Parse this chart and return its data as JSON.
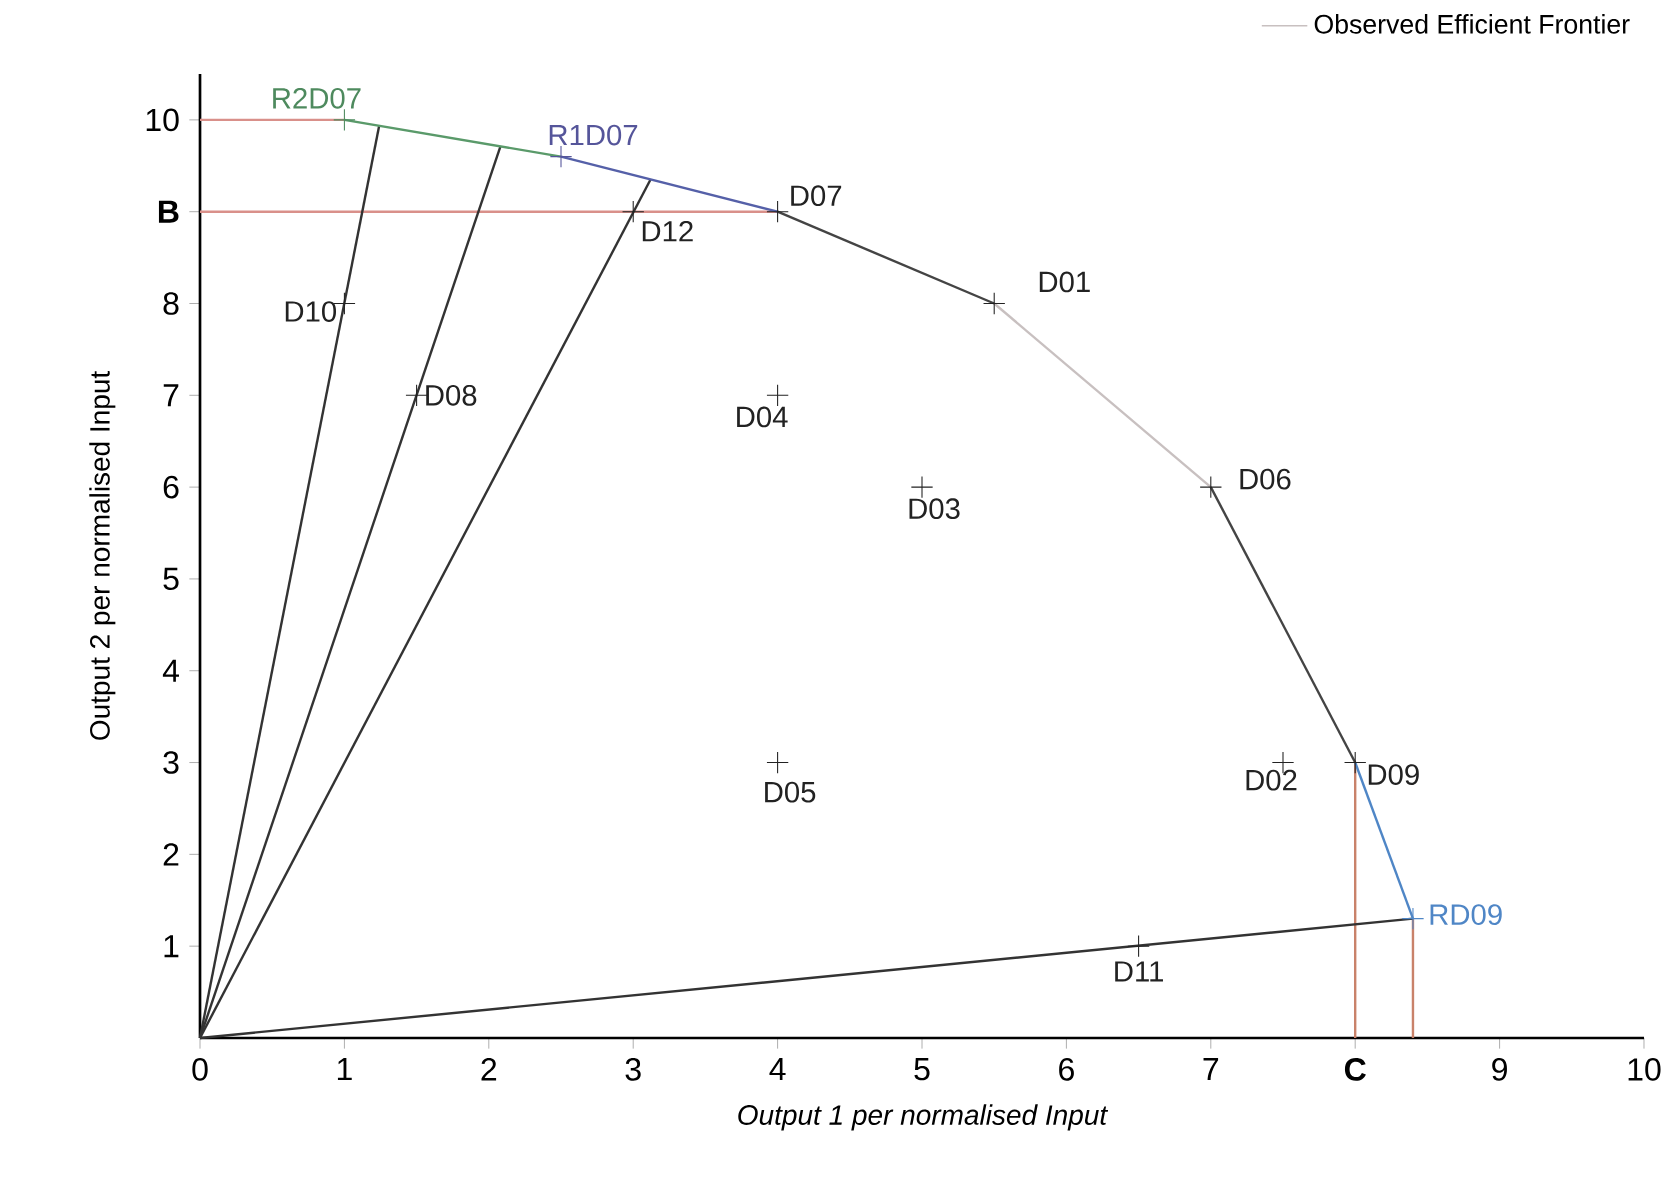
{
  "chart_data": {
    "type": "scatter",
    "xlabel": "Output 1 per normalised Input",
    "ylabel": "Output 2 per normalised Input",
    "xlim": [
      0,
      10
    ],
    "ylim": [
      0,
      10.5
    ],
    "xticks": [
      0,
      1,
      2,
      3,
      4,
      5,
      6,
      7,
      {
        "value": 8,
        "label": "C"
      },
      9,
      10
    ],
    "yticks": [
      1,
      2,
      3,
      4,
      5,
      6,
      7,
      8,
      {
        "value": 9,
        "label": "B"
      },
      10
    ],
    "legend": "top right",
    "series": [
      {
        "type": "line",
        "color": "#d9908a",
        "x": [
          0,
          1
        ],
        "values": [
          10,
          10
        ]
      },
      {
        "type": "line",
        "color": "#d9908a",
        "x": [
          0,
          4
        ],
        "values": [
          9,
          9
        ]
      },
      {
        "type": "line",
        "color": "#c9826a",
        "x": [
          8,
          8
        ],
        "values": [
          0,
          3
        ]
      },
      {
        "type": "line",
        "color": "#c9826a",
        "x": [
          8.4,
          8.4
        ],
        "values": [
          0,
          1.3
        ]
      },
      {
        "type": "line",
        "color": "#333333",
        "x": [
          0,
          1.24
        ],
        "values": [
          0,
          9.93
        ]
      },
      {
        "type": "line",
        "color": "#333333",
        "x": [
          0,
          2.08
        ],
        "values": [
          0,
          9.71
        ]
      },
      {
        "type": "line",
        "color": "#333333",
        "x": [
          0,
          3.12
        ],
        "values": [
          0,
          9.35
        ]
      },
      {
        "type": "line",
        "color": "#333333",
        "x": [
          0,
          8.4
        ],
        "values": [
          0,
          1.3
        ]
      },
      {
        "type": "line",
        "color": "#5a9a6a",
        "x": [
          1,
          2.5
        ],
        "values": [
          10,
          9.6
        ]
      },
      {
        "type": "line",
        "color": "#5560a8",
        "x": [
          2.5,
          4
        ],
        "values": [
          9.6,
          9
        ]
      },
      {
        "type": "line",
        "color": "#444444",
        "x": [
          4,
          5.5
        ],
        "values": [
          9,
          8
        ]
      },
      {
        "type": "line",
        "name": "Observed Efficient Frontier",
        "color": "#c8c0c0",
        "x": [
          5.5,
          7
        ],
        "values": [
          8,
          6
        ]
      },
      {
        "type": "line",
        "color": "#444444",
        "x": [
          7,
          8
        ],
        "values": [
          6,
          3
        ]
      },
      {
        "type": "line",
        "color": "#4f86c6",
        "x": [
          8,
          8.4
        ],
        "values": [
          3,
          1.3
        ]
      },
      {
        "name": "R2D07",
        "color": "#4e8a5e",
        "marker": "cross",
        "x": [
          1
        ],
        "values": [
          10
        ]
      },
      {
        "name": "R1D07",
        "color": "#55559a",
        "marker": "cross",
        "x": [
          2.5
        ],
        "values": [
          9.6
        ]
      },
      {
        "name": "D07",
        "color": "#222222",
        "marker": "cross",
        "x": [
          4
        ],
        "values": [
          9
        ]
      },
      {
        "name": "D12",
        "color": "#222222",
        "marker": "cross",
        "x": [
          3
        ],
        "values": [
          9
        ]
      },
      {
        "name": "D10",
        "color": "#222222",
        "marker": "cross",
        "x": [
          1
        ],
        "values": [
          8
        ]
      },
      {
        "name": "D08",
        "color": "#222222",
        "marker": "cross",
        "x": [
          1.5
        ],
        "values": [
          7
        ]
      },
      {
        "name": "D04",
        "color": "#222222",
        "marker": "cross",
        "x": [
          4
        ],
        "values": [
          7
        ]
      },
      {
        "name": "D03",
        "color": "#222222",
        "marker": "cross",
        "x": [
          5
        ],
        "values": [
          6
        ]
      },
      {
        "name": "D01",
        "color": "#222222",
        "marker": "cross",
        "x": [
          5.5
        ],
        "values": [
          8
        ]
      },
      {
        "name": "D06",
        "color": "#222222",
        "marker": "cross",
        "x": [
          7
        ],
        "values": [
          6
        ]
      },
      {
        "name": "D05",
        "color": "#222222",
        "marker": "cross",
        "x": [
          4
        ],
        "values": [
          3
        ]
      },
      {
        "name": "D02",
        "color": "#222222",
        "marker": "cross",
        "x": [
          7.5
        ],
        "values": [
          3
        ]
      },
      {
        "name": "D09",
        "color": "#222222",
        "marker": "cross",
        "x": [
          8
        ],
        "values": [
          3
        ]
      },
      {
        "name": "RD09",
        "color": "#4f86c6",
        "marker": "cross",
        "x": [
          8.4
        ],
        "values": [
          1.3
        ]
      },
      {
        "name": "D11",
        "color": "#222222",
        "marker": "cross",
        "x": [
          6.5
        ],
        "values": [
          1
        ]
      }
    ]
  }
}
